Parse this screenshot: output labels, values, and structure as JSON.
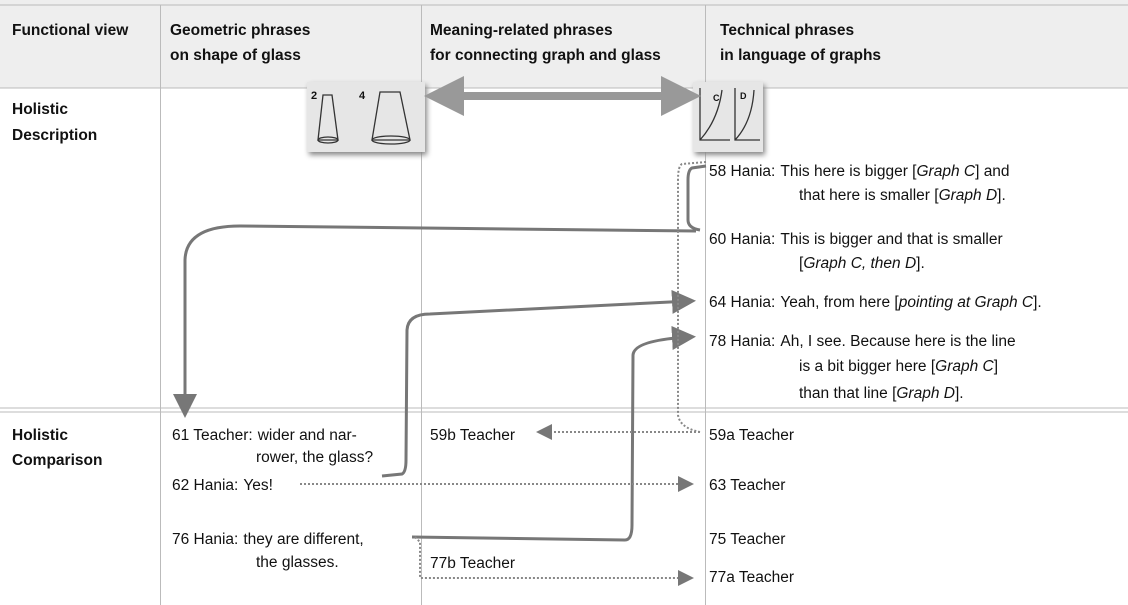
{
  "header": [
    [
      "Functional view"
    ],
    [
      "Geometric phrases",
      "on shape of glass"
    ],
    [
      "Meaning-related phrases",
      "for connecting graph and glass"
    ],
    [
      "Technical phrases",
      "in language of graphs"
    ]
  ],
  "rows": [
    {
      "label": [
        "Holistic",
        "Description"
      ]
    },
    {
      "label": [
        "Holistic",
        "Comparison"
      ]
    }
  ],
  "icons": {
    "glasses": [
      "2",
      "4"
    ],
    "graphs": [
      "C",
      "D"
    ]
  },
  "description": [
    {
      "speaker": "58 Hania:",
      "lines": [
        [
          "This here is bigger [",
          {
            "italic": "Graph C"
          },
          "] and"
        ],
        [
          "that here is smaller [",
          {
            "italic": "Graph D"
          },
          "]."
        ]
      ]
    },
    {
      "speaker": "60 Hania:",
      "lines": [
        [
          "This is bigger and that is smaller"
        ],
        [
          "[",
          {
            "italic": "Graph C, then D"
          },
          "]."
        ]
      ]
    },
    {
      "speaker": "64 Hania:",
      "lines": [
        [
          "Yeah, from here [",
          {
            "italic": "pointing at Graph C"
          },
          "]."
        ]
      ]
    },
    {
      "speaker": "78 Hania:",
      "lines": [
        [
          "Ah, I see. Because here is the line"
        ],
        [
          "is a bit bigger here [",
          {
            "italic": "Graph C"
          },
          "]"
        ],
        [
          "than that line [",
          {
            "italic": "Graph D"
          },
          "]."
        ]
      ]
    }
  ],
  "comparison": {
    "geometric": [
      {
        "speaker": "61 Teacher:",
        "lines": [
          [
            "wider and nar-"
          ],
          [
            "rower, the glass?"
          ]
        ]
      },
      {
        "speaker": "62 Hania:",
        "lines": [
          [
            "Yes!"
          ]
        ]
      },
      {
        "speaker": "76 Hania:",
        "lines": [
          [
            "they are different,"
          ],
          [
            "the glasses."
          ]
        ]
      }
    ],
    "meaning": [
      "59b Teacher",
      "77b Teacher"
    ],
    "technical": [
      "59a Teacher",
      "63 Teacher",
      "75 Teacher",
      "77a Teacher"
    ]
  }
}
